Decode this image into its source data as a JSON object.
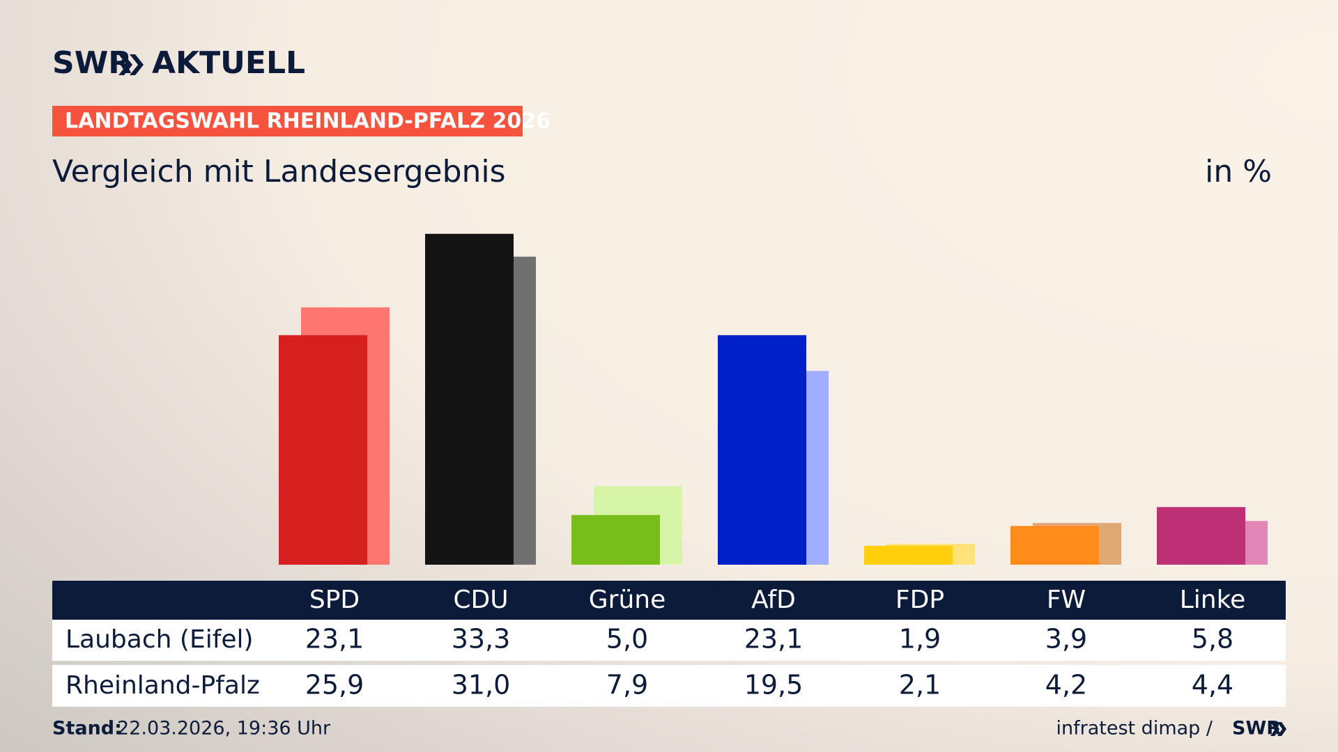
{
  "header": {
    "logo_left": "SWR",
    "logo_right": "AKTUELL",
    "badge": "LANDTAGSWAHL RHEINLAND-PFALZ 2026"
  },
  "chart_data": {
    "type": "bar",
    "title": "Vergleich mit Landesergebnis",
    "unit": "in %",
    "categories": [
      "SPD",
      "CDU",
      "Grüne",
      "AfD",
      "FDP",
      "FW",
      "Linke"
    ],
    "series": [
      {
        "name": "Laubach (Eifel)",
        "colors": [
          "#d61f1f",
          "#141414",
          "#78be1b",
          "#0021c8",
          "#ffcf0e",
          "#ff8c1a",
          "#bd3076"
        ],
        "values": [
          23.1,
          33.3,
          5.0,
          23.1,
          1.9,
          3.9,
          5.8
        ],
        "value_labels": [
          "23,1",
          "33,3",
          "5,0",
          "23,1",
          "1,9",
          "3,9",
          "5,8"
        ]
      },
      {
        "name": "Rheinland-Pfalz",
        "colors": [
          "#ff7671",
          "#707070",
          "#d7f5a9",
          "#a0aeff",
          "#ffe37a",
          "#e0a874",
          "#e087b7"
        ],
        "values": [
          25.9,
          31.0,
          7.9,
          19.5,
          2.1,
          4.2,
          4.4
        ],
        "value_labels": [
          "25,9",
          "31,0",
          "7,9",
          "19,5",
          "2,1",
          "4,2",
          "4,4"
        ]
      }
    ]
  },
  "footer": {
    "stand_label": "Stand:",
    "stand": "22.03.2026, 19:36 Uhr",
    "source": "infratest dimap /",
    "logo": "SWR"
  }
}
